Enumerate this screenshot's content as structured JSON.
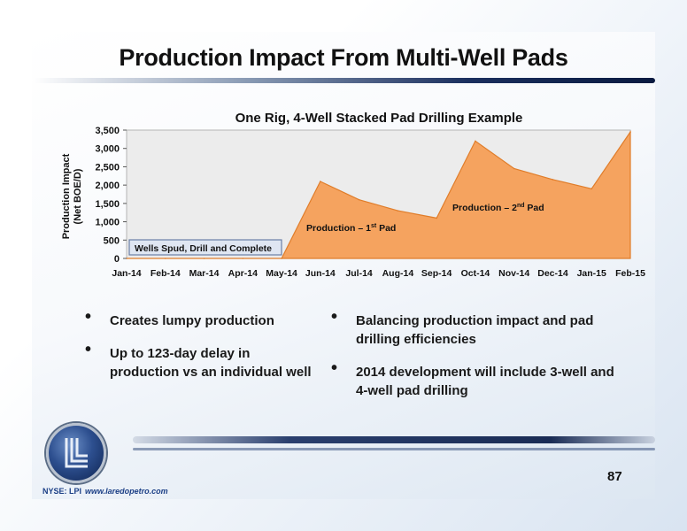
{
  "slide": {
    "title": "Production Impact From Multi-Well Pads",
    "page_number": "87",
    "ticker": "NYSE: LPI",
    "website": "www.laredopetro.com"
  },
  "bullets_left": [
    "Creates lumpy production",
    "Up to 123-day delay in production vs an individual well"
  ],
  "bullets_right": [
    "Balancing production impact and pad drilling efficiencies",
    "2014 development will include 3-well and 4-well pad drilling"
  ],
  "colors": {
    "area_fill": "#f5a35f",
    "area_stroke": "#e07d2a",
    "plot_bg": "#ececec",
    "plot_border": "#b5b5b5",
    "callout_bg": "#dfe6f2",
    "callout_border": "#6a7fa6",
    "accent_navy": "#1b3f86"
  },
  "chart_data": {
    "type": "area",
    "title": "One Rig, 4-Well Stacked Pad Drilling Example",
    "ylabel": "Production Impact",
    "ylabel_line2": "(Net BOE/D)",
    "ylim": [
      0,
      3500
    ],
    "yticks": [
      0,
      500,
      1000,
      1500,
      2000,
      2500,
      3000,
      3500
    ],
    "ytick_labels": [
      "0",
      "500",
      "1,000",
      "1,500",
      "2,000",
      "2,500",
      "3,000",
      "3,500"
    ],
    "grid": false,
    "legend": "none",
    "categories": [
      "Jan-14",
      "Feb-14",
      "Mar-14",
      "Apr-14",
      "May-14",
      "Jun-14",
      "Jul-14",
      "Aug-14",
      "Sep-14",
      "Oct-14",
      "Nov-14",
      "Dec-14",
      "Jan-15",
      "Feb-15"
    ],
    "series": [
      {
        "values": [
          0,
          0,
          0,
          0,
          0,
          2100,
          1600,
          1300,
          1100,
          3200,
          2450,
          2150,
          1900,
          3450
        ]
      }
    ],
    "annotations": [
      {
        "text": "Wells Spud, Drill and Complete",
        "type": "callout"
      },
      {
        "text": "Production – 1",
        "sup": "st",
        "suffix": " Pad"
      },
      {
        "text": "Production – 2",
        "sup": "nd",
        "suffix": " Pad"
      }
    ]
  }
}
